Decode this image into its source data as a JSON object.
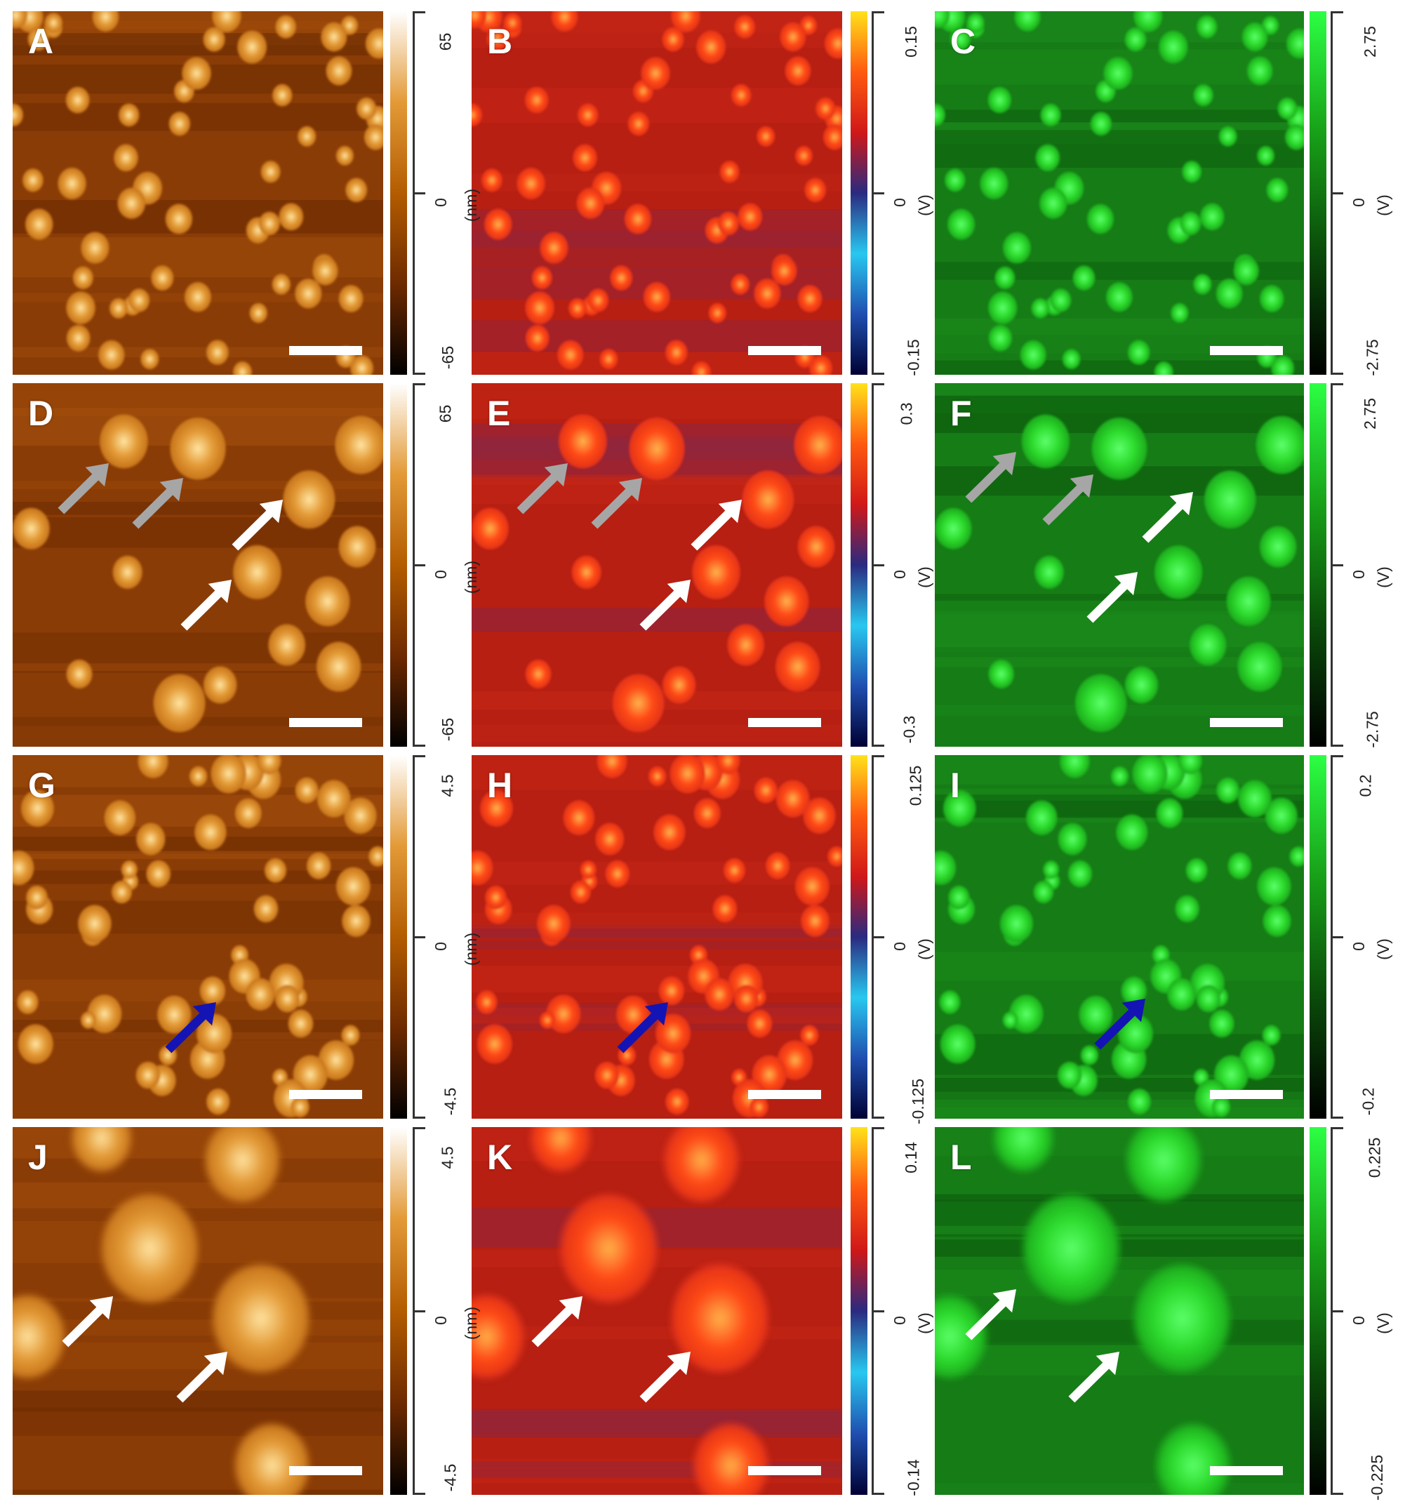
{
  "panels": [
    {
      "id": "A",
      "label": "A",
      "type": "topo",
      "row": 0,
      "col": 0
    },
    {
      "id": "B",
      "label": "B",
      "type": "red",
      "row": 0,
      "col": 1
    },
    {
      "id": "C",
      "label": "C",
      "type": "green",
      "row": 0,
      "col": 2
    },
    {
      "id": "D",
      "label": "D",
      "type": "topo",
      "row": 1,
      "col": 0
    },
    {
      "id": "E",
      "label": "E",
      "type": "red",
      "row": 1,
      "col": 1
    },
    {
      "id": "F",
      "label": "F",
      "type": "green",
      "row": 1,
      "col": 2
    },
    {
      "id": "G",
      "label": "G",
      "type": "topo",
      "row": 2,
      "col": 0
    },
    {
      "id": "H",
      "label": "H",
      "type": "red",
      "row": 2,
      "col": 1
    },
    {
      "id": "I",
      "label": "I",
      "type": "green",
      "row": 2,
      "col": 2
    },
    {
      "id": "J",
      "label": "J",
      "type": "topo",
      "row": 3,
      "col": 0
    },
    {
      "id": "K",
      "label": "K",
      "type": "red",
      "row": 3,
      "col": 1
    },
    {
      "id": "L",
      "label": "L",
      "type": "green",
      "row": 3,
      "col": 2
    }
  ],
  "colorbars": [
    {
      "row": 0,
      "col": 0,
      "type": "topo",
      "max": "65",
      "mid": "0",
      "min": "-65",
      "unit": "(nm)"
    },
    {
      "row": 0,
      "col": 1,
      "type": "red",
      "max": "0.15",
      "mid": "0",
      "min": "-0.15",
      "unit": "(V)"
    },
    {
      "row": 0,
      "col": 2,
      "type": "green",
      "max": "2.75",
      "mid": "0",
      "min": "-2.75",
      "unit": "(V)"
    },
    {
      "row": 1,
      "col": 0,
      "type": "topo",
      "max": "65",
      "mid": "0",
      "min": "-65",
      "unit": "(nm)"
    },
    {
      "row": 1,
      "col": 1,
      "type": "red",
      "max": "0.3",
      "mid": "0",
      "min": "-0.3",
      "unit": "(V)"
    },
    {
      "row": 1,
      "col": 2,
      "type": "green",
      "max": "2.75",
      "mid": "0",
      "min": "-2.75",
      "unit": "(V)"
    },
    {
      "row": 2,
      "col": 0,
      "type": "topo",
      "max": "4.5",
      "mid": "0",
      "min": "-4.5",
      "unit": "(nm)"
    },
    {
      "row": 2,
      "col": 1,
      "type": "red",
      "max": "0.125",
      "mid": "0",
      "min": "-0.125",
      "unit": "(V)"
    },
    {
      "row": 2,
      "col": 2,
      "type": "green",
      "max": "0.2",
      "mid": "0",
      "min": "-0.2",
      "unit": "(V)"
    },
    {
      "row": 3,
      "col": 0,
      "type": "topo",
      "max": "4.5",
      "mid": "0",
      "min": "-4.5",
      "unit": "(nm)"
    },
    {
      "row": 3,
      "col": 1,
      "type": "red",
      "max": "0.14",
      "mid": "0",
      "min": "-0.14",
      "unit": "(V)"
    },
    {
      "row": 3,
      "col": 2,
      "type": "green",
      "max": "0.225",
      "mid": "0",
      "min": "-0.225",
      "unit": "(V)"
    }
  ],
  "colors": {
    "topo": [
      "#000000",
      "#6e2a00",
      "#b35c00",
      "#e39a36",
      "#ffffff"
    ],
    "red": [
      "#000033",
      "#1f4fb0",
      "#28c8f0",
      "#2a2a80",
      "#d01818",
      "#ff5a10",
      "#ffe21a"
    ],
    "green": [
      "#000000",
      "#0a4a0a",
      "#18a018",
      "#2cff44"
    ],
    "arrow_gray": "#a6a6a6",
    "arrow_white": "#ffffff",
    "arrow_blue": "#1414b4"
  }
}
